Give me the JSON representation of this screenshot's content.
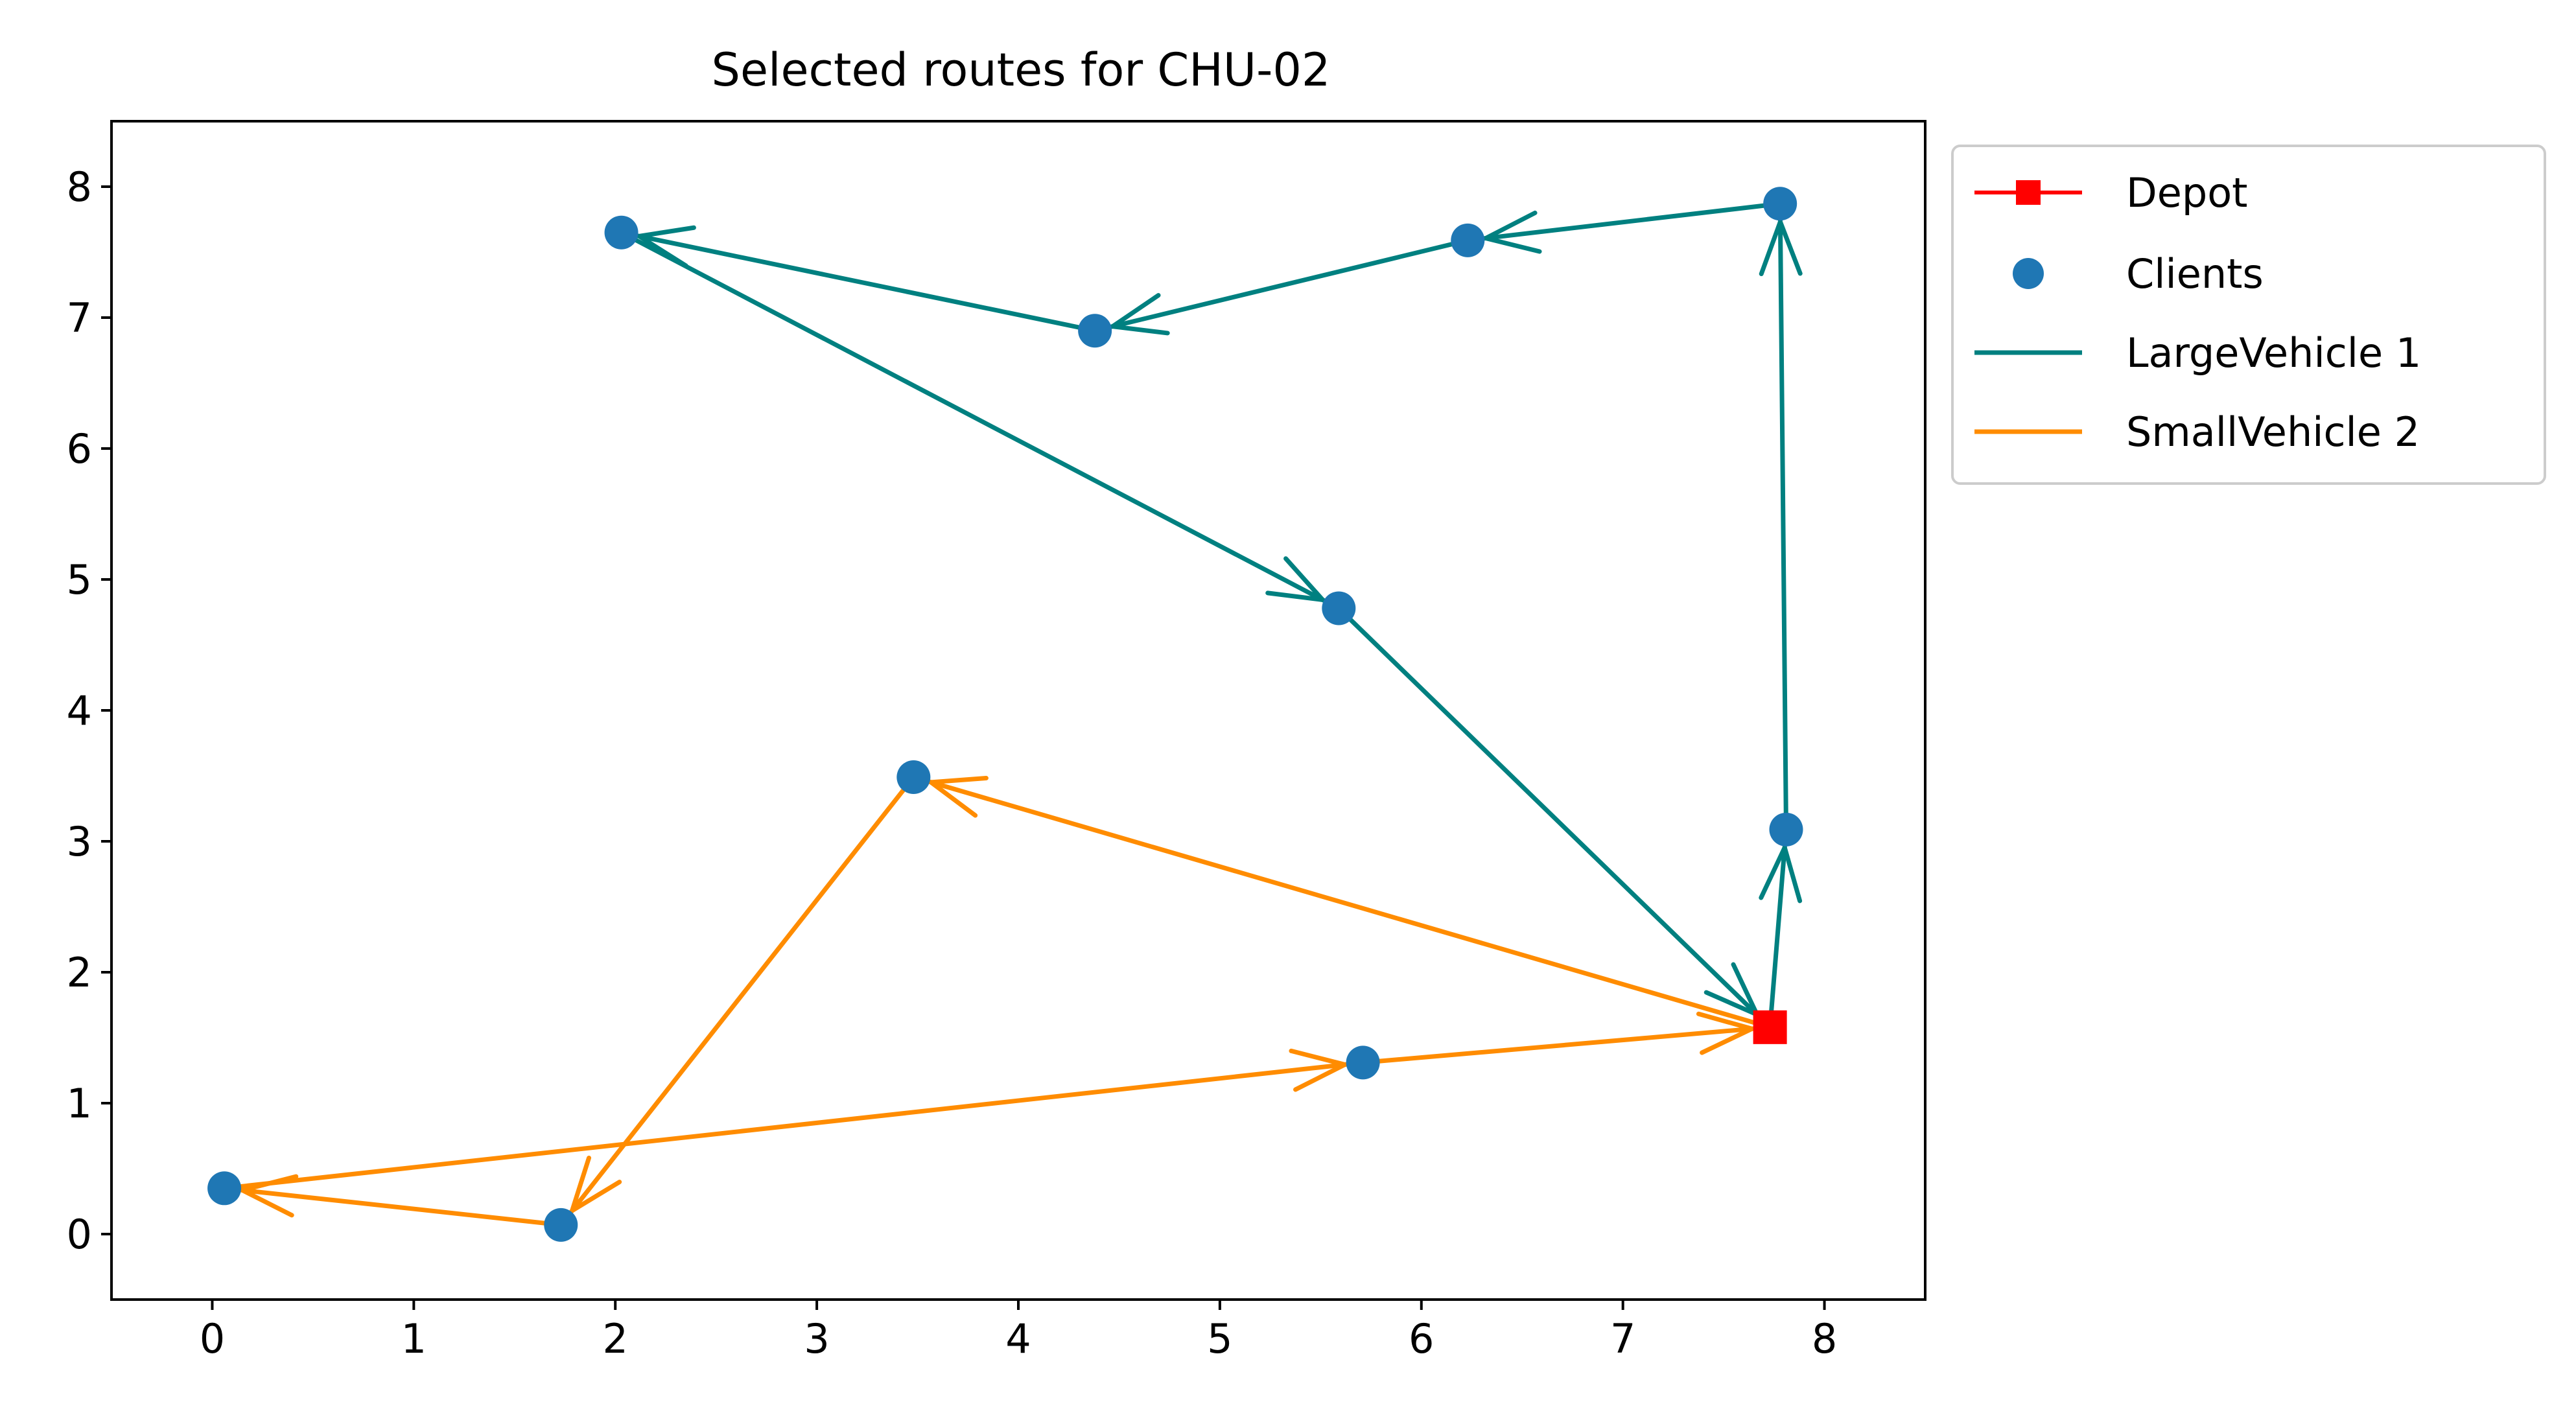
{
  "chart_data": {
    "type": "scatter",
    "title": "Selected routes for CHU-02",
    "xlabel": "",
    "ylabel": "",
    "xlim": [
      -0.5,
      8.5
    ],
    "ylim": [
      -0.5,
      8.5
    ],
    "xticks": [
      "0",
      "1",
      "2",
      "3",
      "4",
      "5",
      "6",
      "7",
      "8"
    ],
    "yticks": [
      "0",
      "1",
      "2",
      "3",
      "4",
      "5",
      "6",
      "7",
      "8"
    ],
    "grid": false,
    "legend_position": "outside-top-right",
    "depot": {
      "name": "Depot",
      "x": 7.73,
      "y": 1.58,
      "color": "#ff0000",
      "marker": "square"
    },
    "clients": {
      "name": "Clients",
      "color": "#1f77b4",
      "points": [
        {
          "x": 7.78,
          "y": 7.87
        },
        {
          "x": 6.23,
          "y": 7.59
        },
        {
          "x": 2.03,
          "y": 7.65
        },
        {
          "x": 4.38,
          "y": 6.9
        },
        {
          "x": 5.59,
          "y": 4.78
        },
        {
          "x": 3.48,
          "y": 3.49
        },
        {
          "x": 7.81,
          "y": 3.09
        },
        {
          "x": 5.71,
          "y": 1.31
        },
        {
          "x": 0.06,
          "y": 0.35
        },
        {
          "x": 1.73,
          "y": 0.07
        }
      ]
    },
    "routes": [
      {
        "name": "LargeVehicle 1",
        "color": "#008080",
        "path": [
          {
            "x": 7.73,
            "y": 1.58
          },
          {
            "x": 7.81,
            "y": 3.09
          },
          {
            "x": 7.78,
            "y": 7.87
          },
          {
            "x": 6.23,
            "y": 7.59
          },
          {
            "x": 4.38,
            "y": 6.9
          },
          {
            "x": 2.03,
            "y": 7.65
          },
          {
            "x": 5.59,
            "y": 4.78
          },
          {
            "x": 7.73,
            "y": 1.58
          }
        ]
      },
      {
        "name": "SmallVehicle 2",
        "color": "#ff8c00",
        "path": [
          {
            "x": 7.73,
            "y": 1.58
          },
          {
            "x": 3.48,
            "y": 3.49
          },
          {
            "x": 1.73,
            "y": 0.07
          },
          {
            "x": 0.06,
            "y": 0.35
          },
          {
            "x": 5.71,
            "y": 1.31
          },
          {
            "x": 7.73,
            "y": 1.58
          }
        ]
      }
    ]
  }
}
